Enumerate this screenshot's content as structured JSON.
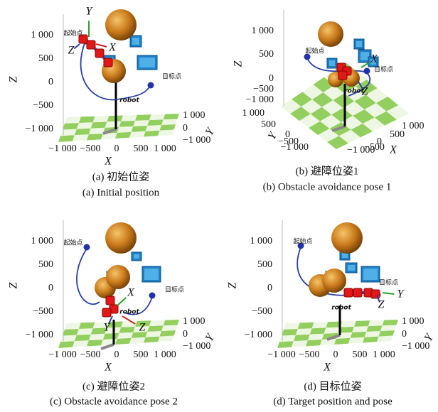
{
  "panels": [
    {
      "caption_cn": "(a) 初始位姿",
      "caption_en": "(a) Initial position",
      "x_label": "X",
      "y_label": "Y",
      "z_label": "Z",
      "zticks": [
        "1 000",
        "500",
        "0",
        "−500",
        "−1 000"
      ],
      "xticks": [
        "−1 000",
        "−500",
        "0",
        "500",
        "1 000"
      ],
      "yticks": [
        "1 000",
        "0",
        "−1 000"
      ],
      "start": "起始点",
      "goal": "目标点",
      "robot": "robot",
      "frame": [
        "Y",
        "Z",
        "X"
      ]
    },
    {
      "caption_cn": "(b) 避障位姿1",
      "caption_en": "(b) Obstacle avoidance pose 1",
      "x_label": "X",
      "y_label": "Y",
      "z_label": "Z",
      "zticks": [
        "1 000",
        "500",
        "0",
        "−500",
        "−1 000"
      ],
      "xticks": [
        "1 000",
        "500",
        "0",
        "−500",
        "−1 000"
      ],
      "yticks": [
        "1 000",
        "500",
        "0",
        "−500",
        "−1 000"
      ],
      "start": "起始点",
      "goal": "目标点",
      "robot": "robot",
      "frame": [
        "X",
        "Z"
      ]
    },
    {
      "caption_cn": "(c) 避障位姿2",
      "caption_en": "(c) Obstacle avoidance pose 2",
      "x_label": "X",
      "y_label": "Y",
      "z_label": "Z",
      "zticks": [
        "1 000",
        "500",
        "0",
        "−500",
        "−1 000"
      ],
      "xticks": [
        "−1 000",
        "−500",
        "0",
        "500",
        "1 000"
      ],
      "yticks": [
        "1 000",
        "0",
        "−1 000"
      ],
      "start": "起始点",
      "goal": "目标点",
      "robot": "robot",
      "frame": [
        "X",
        "Y",
        "Z"
      ]
    },
    {
      "caption_cn": "(d) 目标位姿",
      "caption_en": "(d) Target position and pose",
      "x_label": "X",
      "y_label": "Y",
      "z_label": "Z",
      "zticks": [
        "1 000",
        "500",
        "0",
        "−500",
        "−1 000"
      ],
      "xticks": [
        "−1 000",
        "−500",
        "0",
        "500",
        "1 000"
      ],
      "yticks": [
        "1 000",
        "0",
        "−1 000"
      ],
      "start": "起始点",
      "goal": "目标点",
      "robot": "robot",
      "frame": [
        "Y",
        "Z"
      ]
    }
  ]
}
